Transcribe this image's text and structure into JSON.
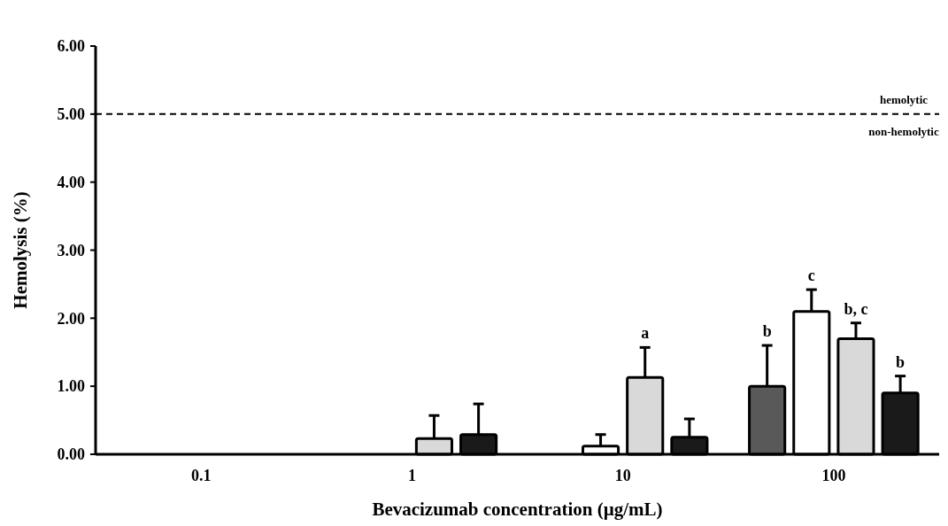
{
  "chart_data": {
    "type": "bar",
    "xlabel": "Bevacizumab concentration (µg/mL)",
    "ylabel": "Hemolysis (%)",
    "categories": [
      "0.1",
      "1",
      "10",
      "100"
    ],
    "series": [
      {
        "color": "#595959",
        "values": [
          0,
          0,
          0,
          1.0
        ],
        "errors": [
          null,
          null,
          null,
          [
            1.0,
            1.6
          ]
        ],
        "value_labels": [
          null,
          null,
          null,
          "b"
        ]
      },
      {
        "color": "#ffffff",
        "values": [
          0,
          0,
          0.12,
          2.1
        ],
        "errors": [
          null,
          null,
          [
            0.12,
            0.29
          ],
          [
            2.1,
            2.42
          ]
        ],
        "value_labels": [
          null,
          null,
          null,
          "c"
        ]
      },
      {
        "color": "#d9d9d9",
        "values": [
          0,
          0.23,
          1.13,
          1.7
        ],
        "errors": [
          null,
          [
            0.23,
            0.57
          ],
          [
            1.13,
            1.57
          ],
          [
            1.7,
            1.93
          ]
        ],
        "value_labels": [
          null,
          null,
          "a",
          "b, c"
        ]
      },
      {
        "color": "#1a1a1a",
        "values": [
          0,
          0.29,
          0.25,
          0.9
        ],
        "errors": [
          null,
          [
            0.29,
            0.74
          ],
          [
            0.25,
            0.52
          ],
          [
            0.9,
            1.15
          ]
        ],
        "value_labels": [
          null,
          null,
          null,
          "b"
        ]
      }
    ],
    "ylim": [
      0,
      6
    ],
    "yticks": [
      {
        "value": 0,
        "label": "0.00"
      },
      {
        "value": 1,
        "label": "1.00"
      },
      {
        "value": 2,
        "label": "2.00"
      },
      {
        "value": 3,
        "label": "3.00"
      },
      {
        "value": 4,
        "label": "4.00"
      },
      {
        "value": 5,
        "label": "5.00"
      },
      {
        "value": 6,
        "label": "6.00"
      }
    ],
    "ref_lines": [
      {
        "axis": "y",
        "value": 5,
        "label": "hemolytic",
        "line_style": "dashed",
        "color": "#000000"
      }
    ],
    "annotations": [
      "non-hemolytic"
    ],
    "grid": false
  }
}
